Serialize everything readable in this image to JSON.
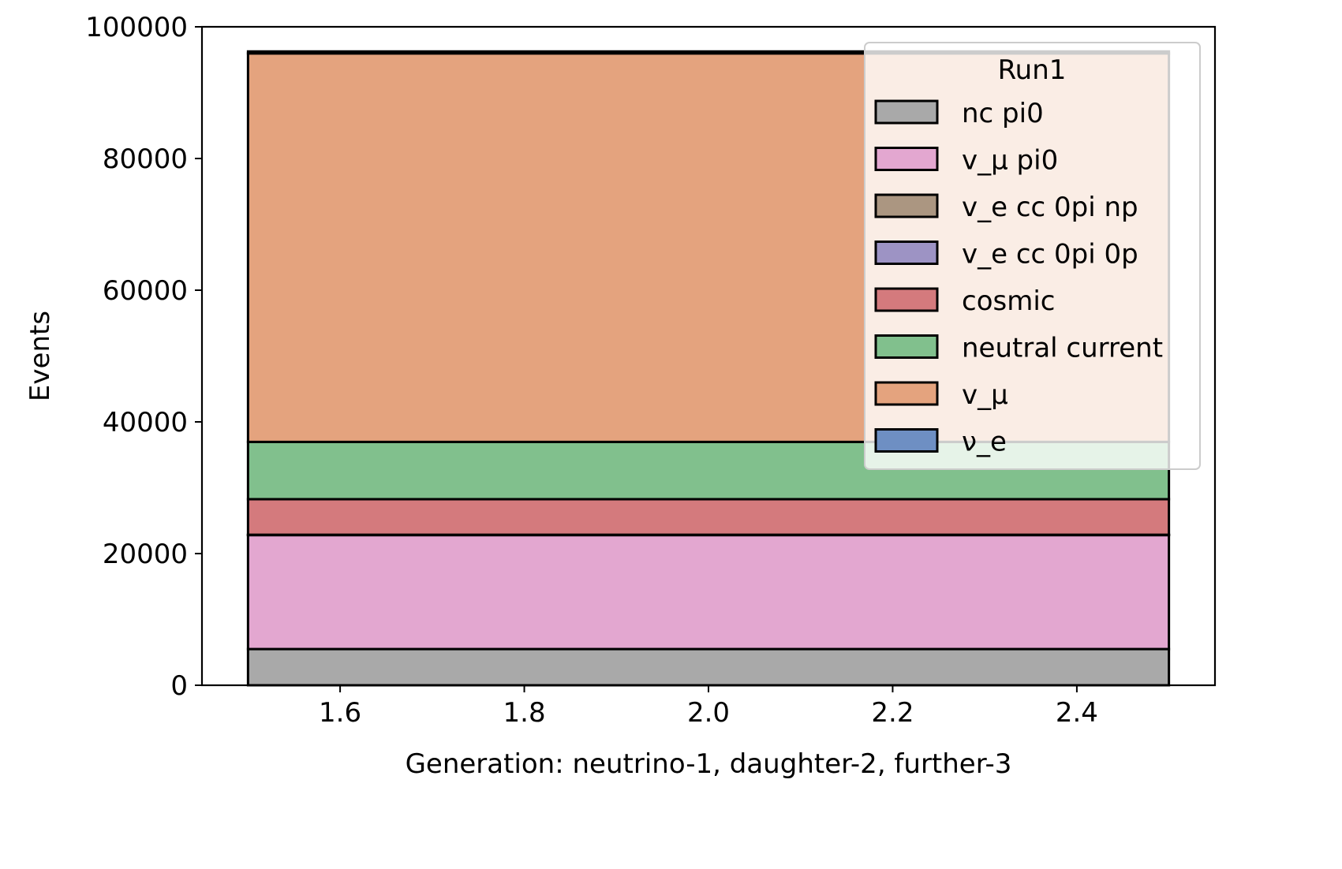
{
  "chart_data": {
    "type": "bar",
    "stacked": true,
    "title": "",
    "xlabel": "Generation: neutrino-1, daughter-2, further-3",
    "ylabel": "Events",
    "xlim": [
      1.45,
      2.55
    ],
    "ylim": [
      0,
      100000
    ],
    "xticks": [
      1.6,
      1.8,
      2.0,
      2.2,
      2.4
    ],
    "xtick_labels": [
      "1.6",
      "1.8",
      "2.0",
      "2.2",
      "2.4"
    ],
    "yticks": [
      0,
      20000,
      40000,
      60000,
      80000,
      100000
    ],
    "ytick_labels": [
      "0",
      "20000",
      "40000",
      "60000",
      "80000",
      "100000"
    ],
    "bin_edges": [
      1.5,
      2.5
    ],
    "grid": false,
    "legend": {
      "title": "Run1",
      "position": "top-right"
    },
    "series": [
      {
        "name": "nc pi0",
        "label": "nc pi0",
        "values": [
          5500
        ],
        "color": "#a9a9a9"
      },
      {
        "name": "v_mu pi0",
        "label": "v_μ pi0",
        "values": [
          17300
        ],
        "color": "#e3a7d0"
      },
      {
        "name": "v_e cc 0pi np",
        "label": "v_e cc 0pi np",
        "values": [
          40
        ],
        "color": "#ab9681"
      },
      {
        "name": "v_e cc 0pi 0p",
        "label": "v_e cc 0pi 0p",
        "values": [
          20
        ],
        "color": "#9d93c4"
      },
      {
        "name": "cosmic",
        "label": "cosmic",
        "values": [
          5400
        ],
        "color": "#d47a7d"
      },
      {
        "name": "neutral current",
        "label": "neutral current",
        "values": [
          8700
        ],
        "color": "#81c08d"
      },
      {
        "name": "v_mu",
        "label": "v_μ",
        "values": [
          59000
        ],
        "color": "#e4a37e"
      },
      {
        "name": "nu_e",
        "label": "ν_e",
        "values": [
          300
        ],
        "color": "#6e8fc3"
      }
    ]
  }
}
